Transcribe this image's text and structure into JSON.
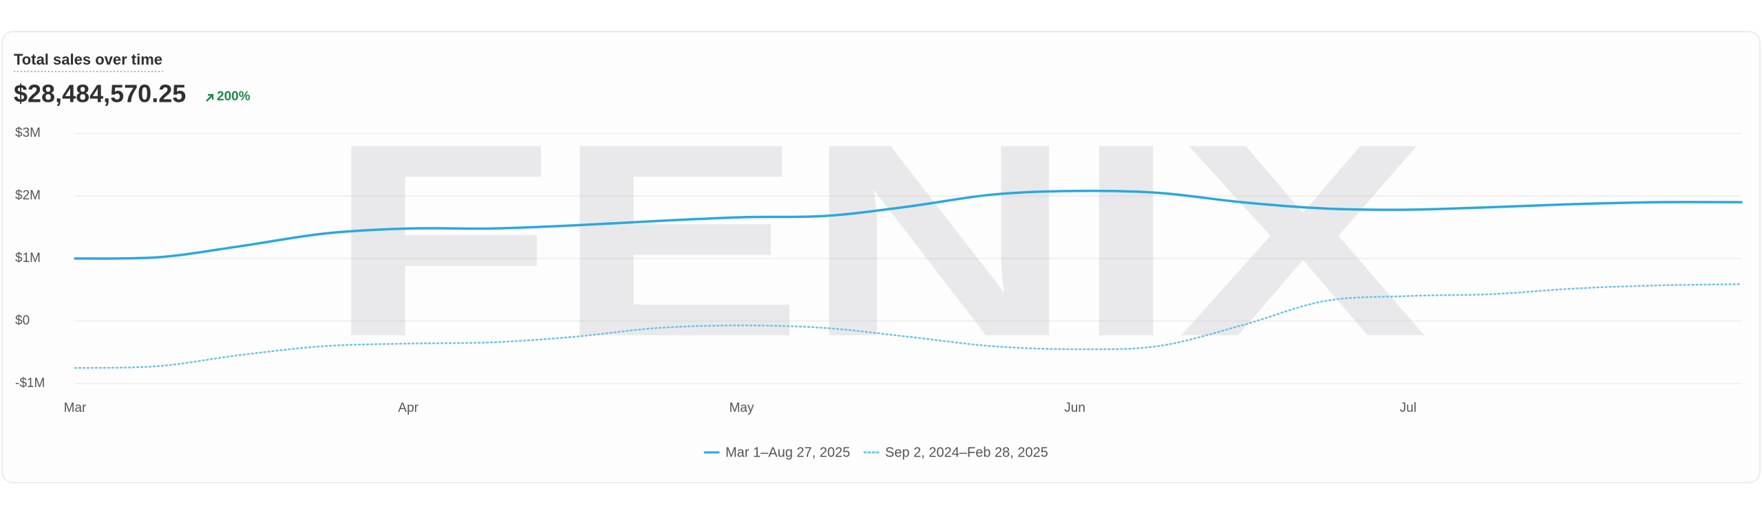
{
  "chart_data": {
    "type": "line",
    "title": "Total sales over time",
    "total": "$28,484,570.25",
    "change": "200%",
    "watermark": "FENIX",
    "categories": [
      "Mar",
      null,
      null,
      null,
      "Apr",
      null,
      null,
      null,
      "May",
      null,
      null,
      null,
      "Jun",
      null,
      null,
      null,
      "Jul",
      null,
      null,
      null,
      null
    ],
    "series": [
      {
        "name": "Mar 1–Aug 27, 2025",
        "color": "#29a8e0",
        "style": "solid",
        "values": [
          1.0,
          1.02,
          1.2,
          1.4,
          1.48,
          1.48,
          1.53,
          1.6,
          1.66,
          1.68,
          1.83,
          2.02,
          2.08,
          2.05,
          1.9,
          1.8,
          1.78,
          1.82,
          1.87,
          1.9,
          1.9
        ]
      },
      {
        "name": "Sep 2, 2024–Feb 28, 2025",
        "color": "#6cc3ea",
        "style": "dotted",
        "values": [
          -0.75,
          -0.72,
          -0.54,
          -0.4,
          -0.36,
          -0.34,
          -0.25,
          -0.11,
          -0.07,
          -0.11,
          -0.25,
          -0.4,
          -0.45,
          -0.4,
          -0.07,
          0.32,
          0.4,
          0.43,
          0.52,
          0.57,
          0.59
        ]
      }
    ],
    "ylim": [
      -1,
      3
    ],
    "yticks": [
      {
        "value": -1,
        "label": "-$1M"
      },
      {
        "value": 0,
        "label": "$0"
      },
      {
        "value": 1,
        "label": "$1M"
      },
      {
        "value": 2,
        "label": "$2M"
      },
      {
        "value": 3,
        "label": "$3M"
      }
    ],
    "grid": true
  }
}
